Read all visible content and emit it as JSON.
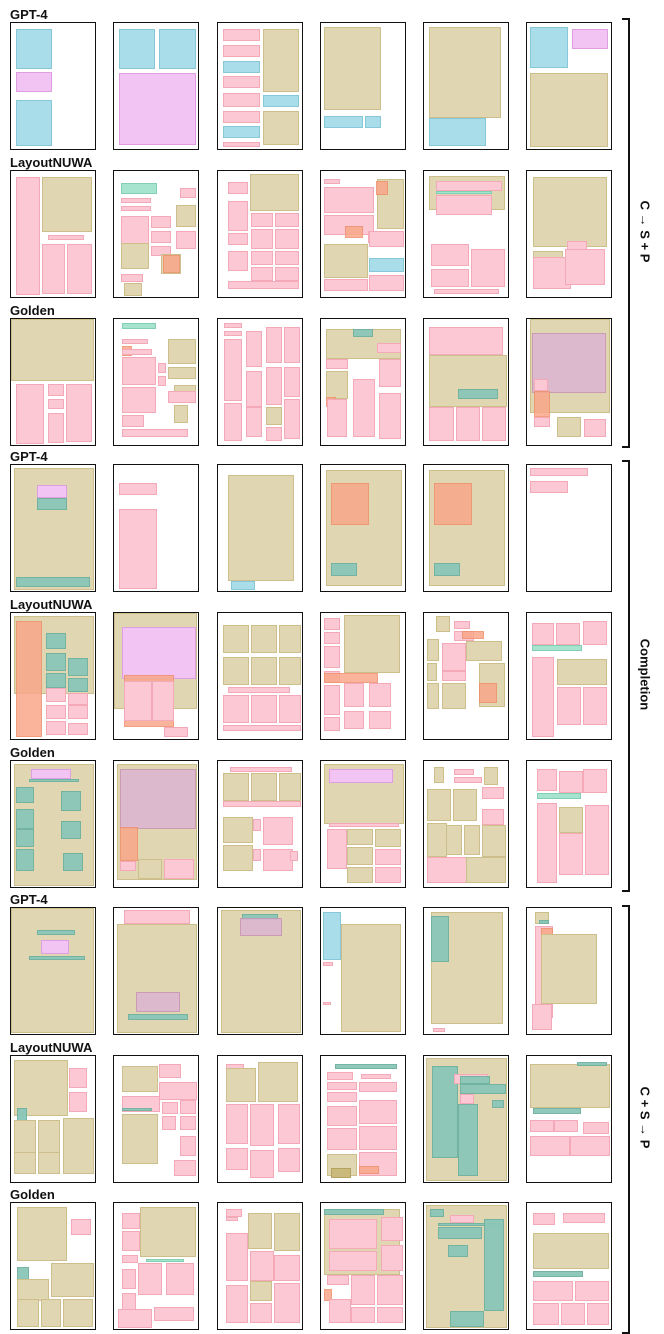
{
  "row_labels": [
    "GPT-4",
    "LayoutNUWA",
    "Golden",
    "GPT-4",
    "LayoutNUWA",
    "Golden",
    "GPT-4",
    "LayoutNUWA",
    "Golden"
  ],
  "group_labels": [
    "C → S + P",
    "Completion",
    "C + S → P"
  ],
  "colors": {
    "tan": "#e0d6b2",
    "pink": "#fcc8d3",
    "blue": "#a9dde9",
    "magenta": "#f2c4f3",
    "teal": "#8ac7b8",
    "orange": "#f8a88a"
  }
}
